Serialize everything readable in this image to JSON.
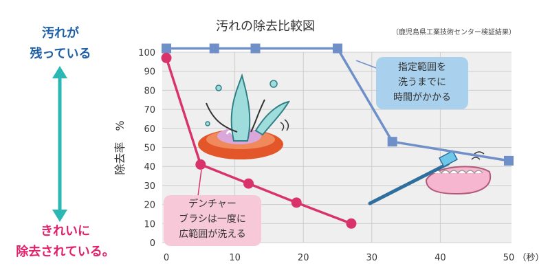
{
  "chart_data": {
    "type": "line",
    "title": "汚れの除去比較図",
    "subtitle": "（鹿児島県工業技術センター検証結果）",
    "ylabel": "除去率　%",
    "x_unit": "（秒）",
    "x_ticks": [
      0,
      10,
      20,
      30,
      40,
      50
    ],
    "y_ticks": [
      0,
      10,
      20,
      30,
      40,
      50,
      60,
      70,
      80,
      90,
      100
    ],
    "xlim": [
      0,
      50
    ],
    "ylim": [
      0,
      100
    ],
    "grid": true,
    "series": [
      {
        "key": "blue",
        "color": "#6f8fc9",
        "marker": "square",
        "points": [
          [
            0,
            102
          ],
          [
            7,
            102
          ],
          [
            13,
            102
          ],
          [
            25,
            102
          ],
          [
            33,
            53
          ],
          [
            50,
            43
          ]
        ]
      },
      {
        "key": "pink",
        "color": "#d8336b",
        "marker": "circle",
        "points": [
          [
            0,
            97
          ],
          [
            5,
            41
          ],
          [
            12,
            31
          ],
          [
            19,
            21
          ],
          [
            27,
            10
          ]
        ]
      }
    ]
  },
  "annotations": {
    "top": [
      "汚れが",
      "残っている"
    ],
    "bottom": [
      "きれいに",
      "除去されている。"
    ],
    "callout_blue": [
      "指定範囲を",
      "洗うまでに",
      "時間がかかる"
    ],
    "callout_pink": [
      "デンチャー",
      "ブラシは一度に",
      "広範囲が洗える"
    ]
  },
  "colors": {
    "arrow": "#2bb7b3",
    "grid": "#cccccc",
    "plot_bg": "#efefef"
  }
}
